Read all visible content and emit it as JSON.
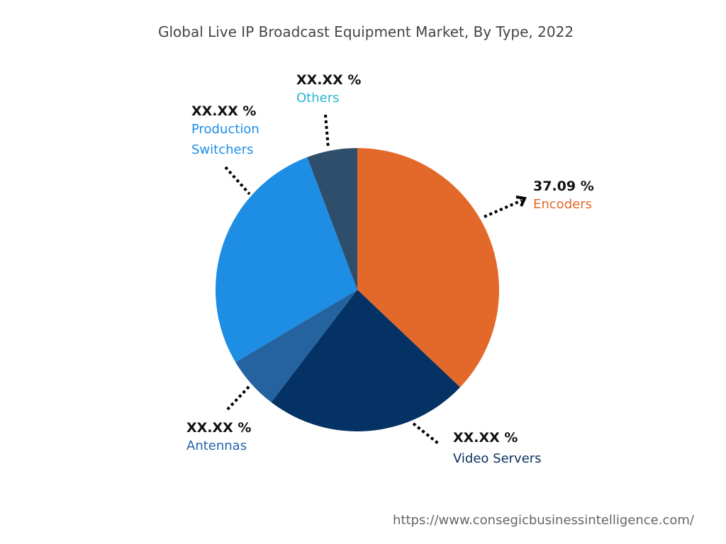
{
  "chart_data": {
    "type": "pie",
    "title": "Global Live IP Broadcast Equipment Market, By Type, 2022",
    "start": "top, clockwise",
    "slices": [
      {
        "name": "Encoders",
        "value": 37.09,
        "label": "37.09 %",
        "color": "#E2692A",
        "label_color": "#E0692A"
      },
      {
        "name": "Video Servers",
        "value": 23.3,
        "label": "XX.XX %",
        "color": "#053264",
        "label_color": "#0B3060"
      },
      {
        "name": "Antennas",
        "value": 6.06,
        "label": "XX.XX %",
        "color": "#2462A0",
        "label_color": "#2563A6"
      },
      {
        "name": "Production Switchers",
        "value": 27.8,
        "label": "XX.XX %",
        "color": "#1E8DE4",
        "label_color": "#1E8EE6"
      },
      {
        "name": "Others",
        "value": 5.75,
        "label": "XX.XX %",
        "color": "#2F4E6C",
        "label_color": "#2BB5D4"
      }
    ]
  },
  "labels": {
    "production_switchers_line1": "Production",
    "production_switchers_line2": "Switchers"
  },
  "source": "https://www.consegicbusinessintelligence.com/"
}
